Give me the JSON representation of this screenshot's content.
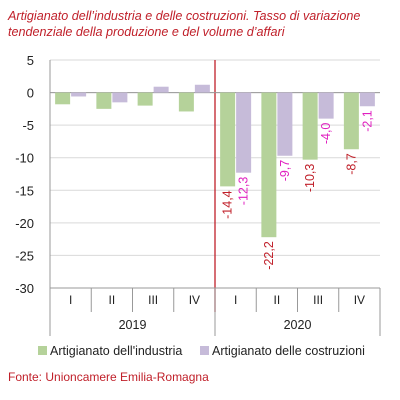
{
  "chart_data": {
    "type": "bar",
    "title": "Artigianato dell’industria e delle costruzioni. Tasso di variazione tendenziale della produzione e del volume d’affari",
    "xlabel": "",
    "ylabel": "",
    "ylim": [
      -30,
      5
    ],
    "yticks": [
      5,
      0,
      -5,
      -10,
      -15,
      -20,
      -25,
      -30
    ],
    "categories": [
      "I",
      "II",
      "III",
      "IV",
      "I",
      "II",
      "III",
      "IV"
    ],
    "years": [
      {
        "label": "2019",
        "quarters": 4
      },
      {
        "label": "2020",
        "quarters": 4
      }
    ],
    "series": [
      {
        "name": "Artigianato dell'industria",
        "color": "#b5d29a",
        "values": [
          -1.8,
          -2.5,
          -2.0,
          -2.9,
          -14.4,
          -22.2,
          -10.3,
          -8.7
        ],
        "labels": [
          "",
          "",
          "",
          "",
          "-14,4",
          "-22,2",
          "-10,3",
          "-8,7"
        ]
      },
      {
        "name": "Artigianato delle costruzioni",
        "color": "#c6bbd9",
        "values": [
          -0.6,
          -1.5,
          0.9,
          1.2,
          -12.3,
          -9.7,
          -4.0,
          -2.1
        ],
        "labels": [
          "",
          "",
          "",
          "",
          "-12,3",
          "-9,7",
          "-4,0",
          "-2,1"
        ]
      }
    ],
    "label_colors": {
      "industria": "#c0202a",
      "costruzioni": "#e020c0"
    },
    "divider_color": "#c0202a",
    "legend": "bottom",
    "grid": true
  },
  "source": "Fonte: Unioncamere Emilia-Romagna"
}
